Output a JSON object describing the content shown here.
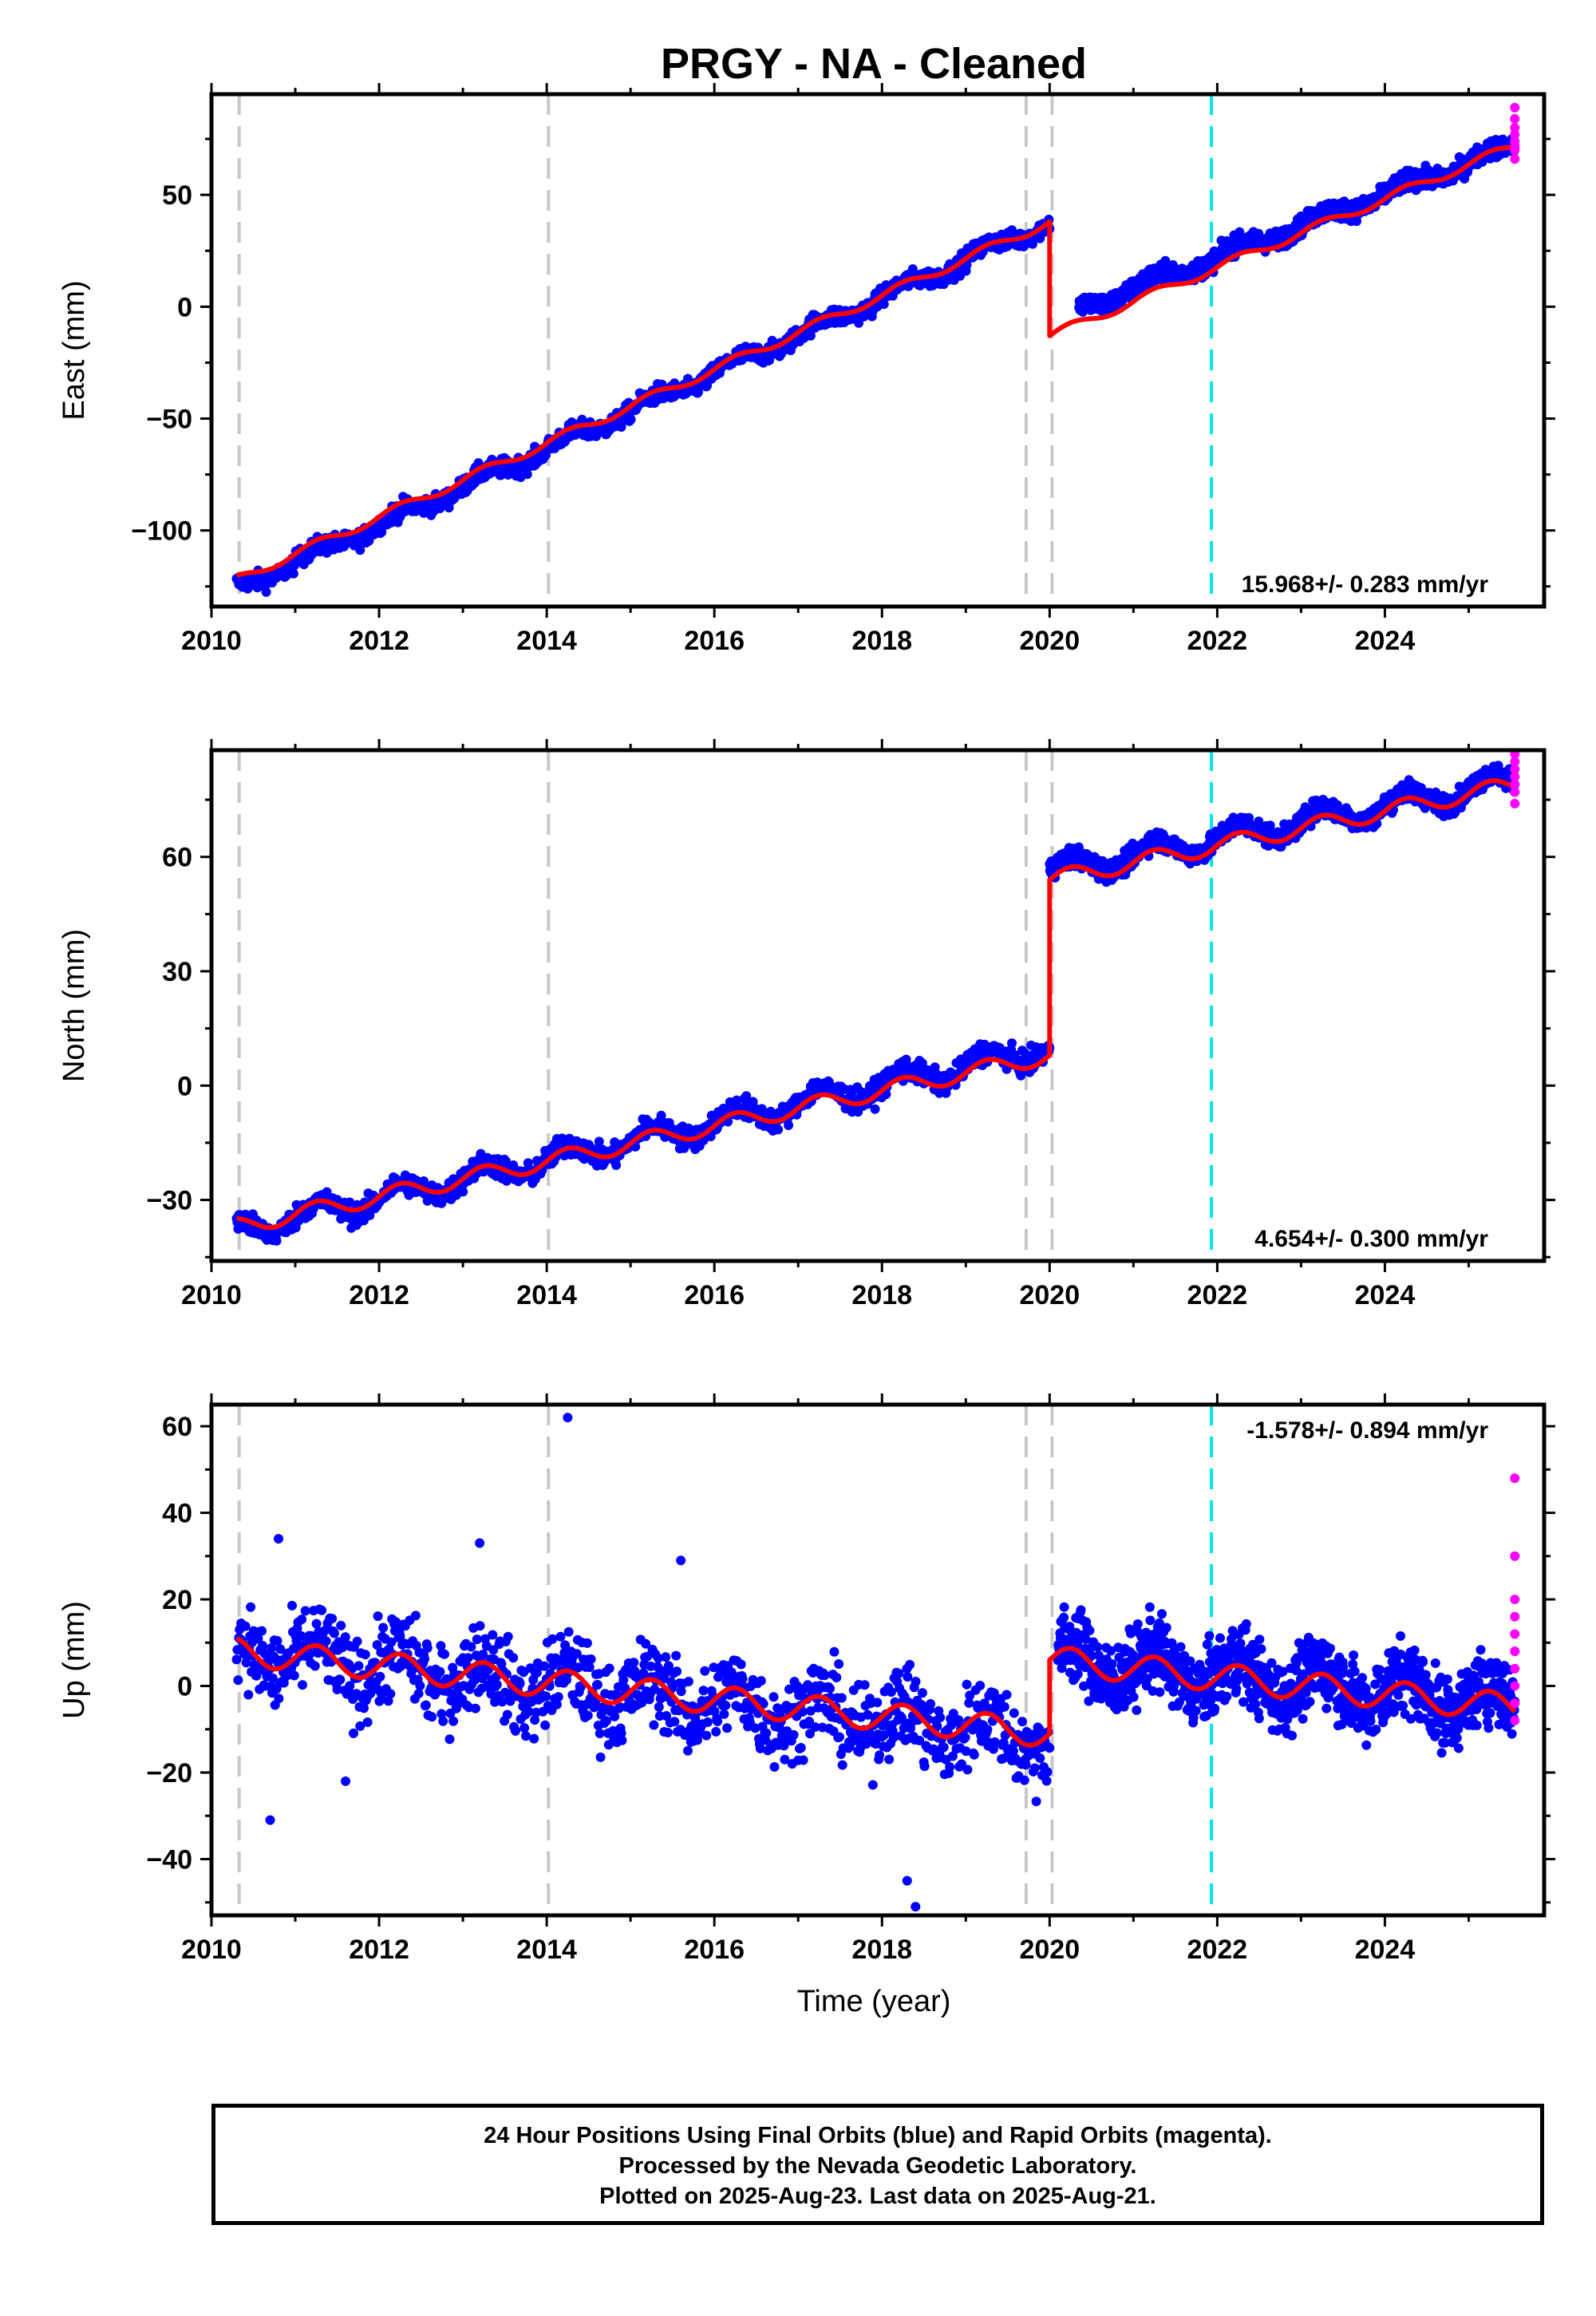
{
  "title": "PRGY  - NA - Cleaned",
  "xlabel": "Time (year)",
  "footer": [
    "24 Hour Positions Using Final Orbits (blue) and Rapid Orbits (magenta).",
    "Processed by the Nevada Geodetic Laboratory.",
    "Plotted on 2025-Aug-23. Last data on 2025-Aug-21."
  ],
  "colors": {
    "final": "#0000ff",
    "rapid": "#ff00ff",
    "model": "#ff0000",
    "equipment_change": "#c8c8c8",
    "earthquake": "#00e5ee"
  },
  "chart_data": [
    {
      "type": "scatter",
      "panel": "east",
      "ylabel": "East (mm)",
      "xlim": [
        2010.0,
        2025.9
      ],
      "ylim": [
        -134,
        95
      ],
      "xticks": [
        2010,
        2012,
        2014,
        2016,
        2018,
        2020,
        2022,
        2024
      ],
      "xtick_labels": [
        "2010",
        "2012",
        "2014",
        "2016",
        "2018",
        "2020",
        "2022",
        "2024"
      ],
      "yticks": [
        -100,
        -50,
        0,
        50
      ],
      "ytick_labels": [
        "−100",
        "−50",
        "0",
        "50"
      ],
      "rate_label": "15.968+/- 0.283 mm/yr",
      "rate_position": "bottom-right",
      "data_range": [
        2010.3,
        2025.55
      ],
      "trend_segments": [
        {
          "x": [
            2010.3,
            2020.0
          ],
          "y": [
            -126,
            38
          ],
          "scatter": 3.5
        },
        {
          "x": [
            2020.35,
            2025.55
          ],
          "y": [
            -1,
            72
          ],
          "scatter": 3.5
        }
      ],
      "model_trend_segments": [
        {
          "x": [
            2010.3,
            2020.0
          ],
          "y": [
            -122,
            38
          ]
        },
        {
          "x": [
            2020.0,
            2025.55
          ],
          "y": [
            -13,
            72
          ]
        }
      ],
      "seasonal_amplitude": 2.5,
      "rapid_points": {
        "x": 2025.55,
        "y": [
          66,
          70,
          72,
          74,
          77,
          80,
          84,
          89
        ]
      },
      "vertical_lines": [
        {
          "x": 2010.33,
          "kind": "equipment"
        },
        {
          "x": 2014.02,
          "kind": "equipment"
        },
        {
          "x": 2019.72,
          "kind": "equipment"
        },
        {
          "x": 2020.03,
          "kind": "equipment"
        },
        {
          "x": 2021.93,
          "kind": "earthquake"
        }
      ]
    },
    {
      "type": "scatter",
      "panel": "north",
      "ylabel": "North (mm)",
      "xlim": [
        2010.0,
        2025.9
      ],
      "ylim": [
        -46,
        88
      ],
      "xticks": [
        2010,
        2012,
        2014,
        2016,
        2018,
        2020,
        2022,
        2024
      ],
      "xtick_labels": [
        "2010",
        "2012",
        "2014",
        "2016",
        "2018",
        "2020",
        "2022",
        "2024"
      ],
      "yticks": [
        -30,
        0,
        30,
        60
      ],
      "ytick_labels": [
        "−30",
        "0",
        "30",
        "60"
      ],
      "rate_label": "4.654+/- 0.300 mm/yr",
      "rate_position": "bottom-right",
      "data_range": [
        2010.3,
        2025.55
      ],
      "trend_segments": [
        {
          "x": [
            2010.3,
            2020.0
          ],
          "y": [
            -38,
            10
          ],
          "scatter": 2.5
        },
        {
          "x": [
            2020.0,
            2025.55
          ],
          "y": [
            56,
            80
          ],
          "scatter": 2.2
        }
      ],
      "model_trend_segments": [
        {
          "x": [
            2010.3,
            2020.0
          ],
          "y": [
            -37,
            8
          ]
        },
        {
          "x": [
            2020.0,
            2025.55
          ],
          "y": [
            54,
            79
          ]
        }
      ],
      "seasonal_amplitude": 2.8,
      "rapid_points": {
        "x": 2025.55,
        "y": [
          74,
          77,
          79,
          81,
          83,
          85,
          87
        ]
      },
      "vertical_lines": [
        {
          "x": 2010.33,
          "kind": "equipment"
        },
        {
          "x": 2014.02,
          "kind": "equipment"
        },
        {
          "x": 2019.72,
          "kind": "equipment"
        },
        {
          "x": 2020.03,
          "kind": "equipment"
        },
        {
          "x": 2021.93,
          "kind": "earthquake"
        }
      ]
    },
    {
      "type": "scatter",
      "panel": "up",
      "ylabel": "Up (mm)",
      "xlim": [
        2010.0,
        2025.9
      ],
      "ylim": [
        -53,
        65
      ],
      "xticks": [
        2010,
        2012,
        2014,
        2016,
        2018,
        2020,
        2022,
        2024
      ],
      "xtick_labels": [
        "2010",
        "2012",
        "2014",
        "2016",
        "2018",
        "2020",
        "2022",
        "2024"
      ],
      "yticks": [
        -40,
        -20,
        0,
        20,
        40,
        60
      ],
      "ytick_labels": [
        "−40",
        "−20",
        "0",
        "20",
        "40",
        "60"
      ],
      "rate_label": "-1.578+/- 0.894 mm/yr",
      "rate_position": "top-right",
      "data_range": [
        2010.3,
        2025.55
      ],
      "trend_segments": [
        {
          "x": [
            2010.3,
            2020.0
          ],
          "y": [
            8,
            -12
          ],
          "scatter": 8
        },
        {
          "x": [
            2020.1,
            2025.55
          ],
          "y": [
            6,
            -4
          ],
          "scatter": 7
        }
      ],
      "model_trend_segments": [
        {
          "x": [
            2010.3,
            2020.0
          ],
          "y": [
            8,
            -11
          ]
        },
        {
          "x": [
            2020.0,
            2025.55
          ],
          "y": [
            6,
            -5
          ]
        }
      ],
      "seasonal_amplitude": 4,
      "outliers": [
        [
          2014.25,
          62
        ],
        [
          2013.2,
          33
        ],
        [
          2010.8,
          34
        ],
        [
          2015.6,
          29
        ],
        [
          2018.4,
          -51
        ],
        [
          2018.3,
          -45
        ],
        [
          2010.7,
          -31
        ],
        [
          2011.6,
          -22
        ]
      ],
      "rapid_points": {
        "x": 2025.55,
        "y": [
          -8,
          -4,
          0,
          4,
          8,
          12,
          16,
          20,
          30,
          48
        ]
      },
      "vertical_lines": [
        {
          "x": 2010.33,
          "kind": "equipment"
        },
        {
          "x": 2014.02,
          "kind": "equipment"
        },
        {
          "x": 2019.72,
          "kind": "equipment"
        },
        {
          "x": 2020.03,
          "kind": "equipment"
        },
        {
          "x": 2021.93,
          "kind": "earthquake"
        }
      ]
    }
  ]
}
